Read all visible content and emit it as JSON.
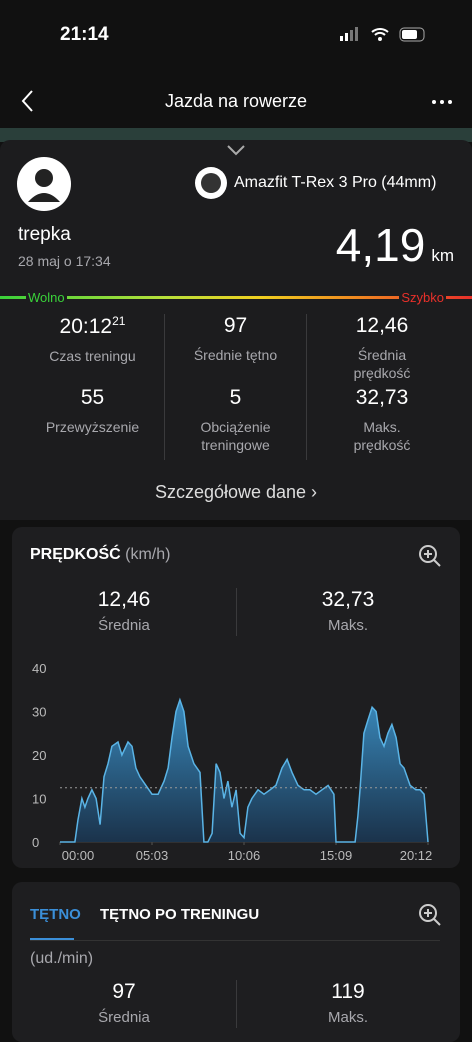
{
  "status_bar": {
    "time": "21:14"
  },
  "nav": {
    "title": "Jazda na rowerze"
  },
  "user": {
    "name": "trepka",
    "date": "28 maj o 17:34"
  },
  "device": "Amazfit T-Rex 3 Pro (44mm)",
  "distance": {
    "value": "4,19",
    "unit": "km"
  },
  "pace_scale": {
    "slow": "Wolno",
    "fast": "Szybko"
  },
  "stats": [
    {
      "value": "20:12",
      "sup": "21",
      "label": "Czas treningu"
    },
    {
      "value": "97",
      "label": "Średnie tętno"
    },
    {
      "value": "12,46",
      "label": "Średnia prędkość"
    },
    {
      "value": "55",
      "label": "Przewyższenie"
    },
    {
      "value": "5",
      "label": "Obciążenie treningowe"
    },
    {
      "value": "32,73",
      "label": "Maks. prędkość"
    }
  ],
  "details_link": "Szczegółowe dane",
  "speed_card": {
    "title": "PRĘDKOŚĆ",
    "unit": "(km/h)",
    "summary": [
      {
        "value": "12,46",
        "label": "Średnia"
      },
      {
        "value": "32,73",
        "label": "Maks."
      }
    ],
    "chart": {
      "type": "area",
      "color": "#5ab4e6",
      "x": [
        0,
        49,
        59,
        72,
        82,
        92,
        105,
        119,
        132,
        145,
        158,
        171,
        191,
        204,
        224,
        237,
        250,
        263,
        283,
        303,
        323,
        343,
        356,
        369,
        382,
        395,
        408,
        422,
        441,
        461,
        474,
        487,
        501,
        514,
        527,
        540,
        553,
        566,
        580,
        593,
        606,
        619,
        632,
        652,
        672,
        692,
        711,
        731,
        748,
        764,
        784,
        804,
        823,
        843,
        863,
        883,
        902,
        909,
        955,
        972,
        981,
        988,
        1001,
        1014,
        1028,
        1041,
        1054,
        1067,
        1080,
        1093,
        1107,
        1120,
        1133,
        1153,
        1172,
        1186,
        1199,
        1212
      ],
      "values": [
        0,
        0,
        5,
        10,
        8,
        10,
        12,
        10,
        4,
        15,
        18,
        22,
        23,
        20,
        23,
        22,
        17,
        15,
        13,
        11,
        11,
        14,
        17,
        24,
        30,
        32.7,
        30,
        22,
        18,
        16,
        0,
        0,
        2,
        18,
        16,
        10,
        14,
        8,
        12,
        2,
        1,
        8,
        10,
        12,
        11,
        12,
        13,
        17,
        19,
        16,
        13,
        12,
        12,
        11,
        12,
        13,
        11,
        0,
        0,
        0,
        6,
        12,
        25,
        28,
        31,
        30,
        24,
        22,
        25,
        27,
        24,
        18,
        17,
        13,
        12,
        12,
        11,
        0
      ],
      "reference_line": 12.46,
      "xlim": [
        0,
        1212
      ],
      "xticks": [
        {
          "value": 0,
          "label": "00:00"
        },
        {
          "value": 303,
          "label": "05:03"
        },
        {
          "value": 606,
          "label": "10:06"
        },
        {
          "value": 909,
          "label": "15:09"
        },
        {
          "value": 1212,
          "label": "20:12"
        }
      ],
      "ylim": [
        0,
        40
      ],
      "yticks": [
        0,
        10,
        20,
        30,
        40
      ]
    }
  },
  "heart_card": {
    "tabs": [
      "TĘTNO",
      "TĘTNO PO TRENINGU"
    ],
    "unit": "(ud./min)",
    "summary": [
      {
        "value": "97",
        "label": "Średnia"
      },
      {
        "value": "119",
        "label": "Maks."
      }
    ]
  }
}
